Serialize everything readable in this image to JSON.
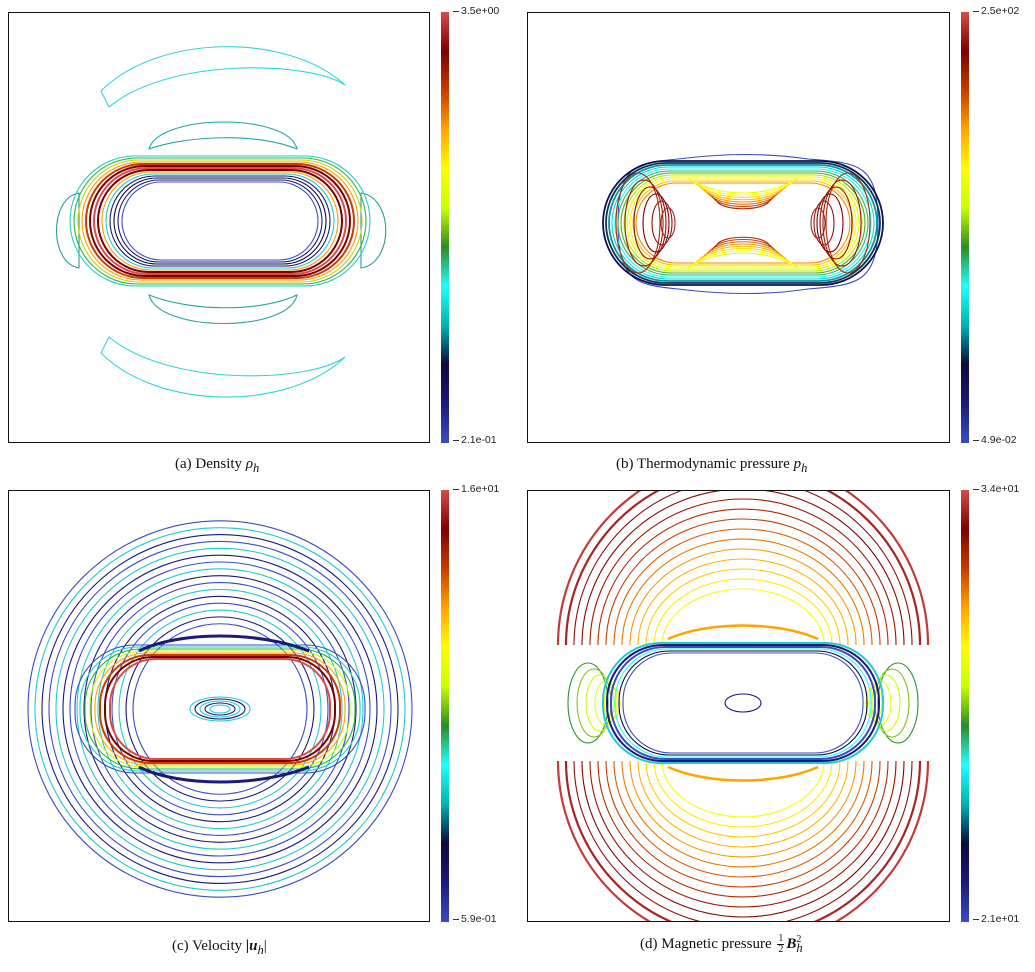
{
  "colormap": [
    "#3b4cc0",
    "#1a1a7a",
    "#0a0a3a",
    "#00b3b3",
    "#22ffff",
    "#2e8b22",
    "#c8ff00",
    "#ffff00",
    "#ffa500",
    "#c83c00",
    "#7a0000",
    "#d94b4b"
  ],
  "panels": [
    {
      "id": "a",
      "field": "density",
      "caption_prefix": "(a) Density",
      "caption_symbol": "ρ",
      "caption_sub": "h",
      "cbar_max": "3.5e+00",
      "cbar_min": "2.1e-01"
    },
    {
      "id": "b",
      "field": "thermodynamic-pressure",
      "caption_prefix": "(b) Thermodynamic pressure",
      "caption_symbol": "p",
      "caption_sub": "h",
      "cbar_max": "2.5e+02",
      "cbar_min": "4.9e-02"
    },
    {
      "id": "c",
      "field": "velocity",
      "caption_prefix": "(c) Velocity",
      "caption_symbol": "|u",
      "caption_sub": "h",
      "caption_suffix": "|",
      "cbar_max": "1.6e+01",
      "cbar_min": "5.9e-01"
    },
    {
      "id": "d",
      "field": "magnetic-pressure",
      "caption_prefix": "(d) Magnetic pressure",
      "caption_frac_num": "1",
      "caption_frac_den": "2",
      "caption_symbol": "B",
      "caption_sub": "h",
      "caption_sup": "2",
      "cbar_max": "3.4e+01",
      "cbar_min": "2.1e+01"
    }
  ]
}
